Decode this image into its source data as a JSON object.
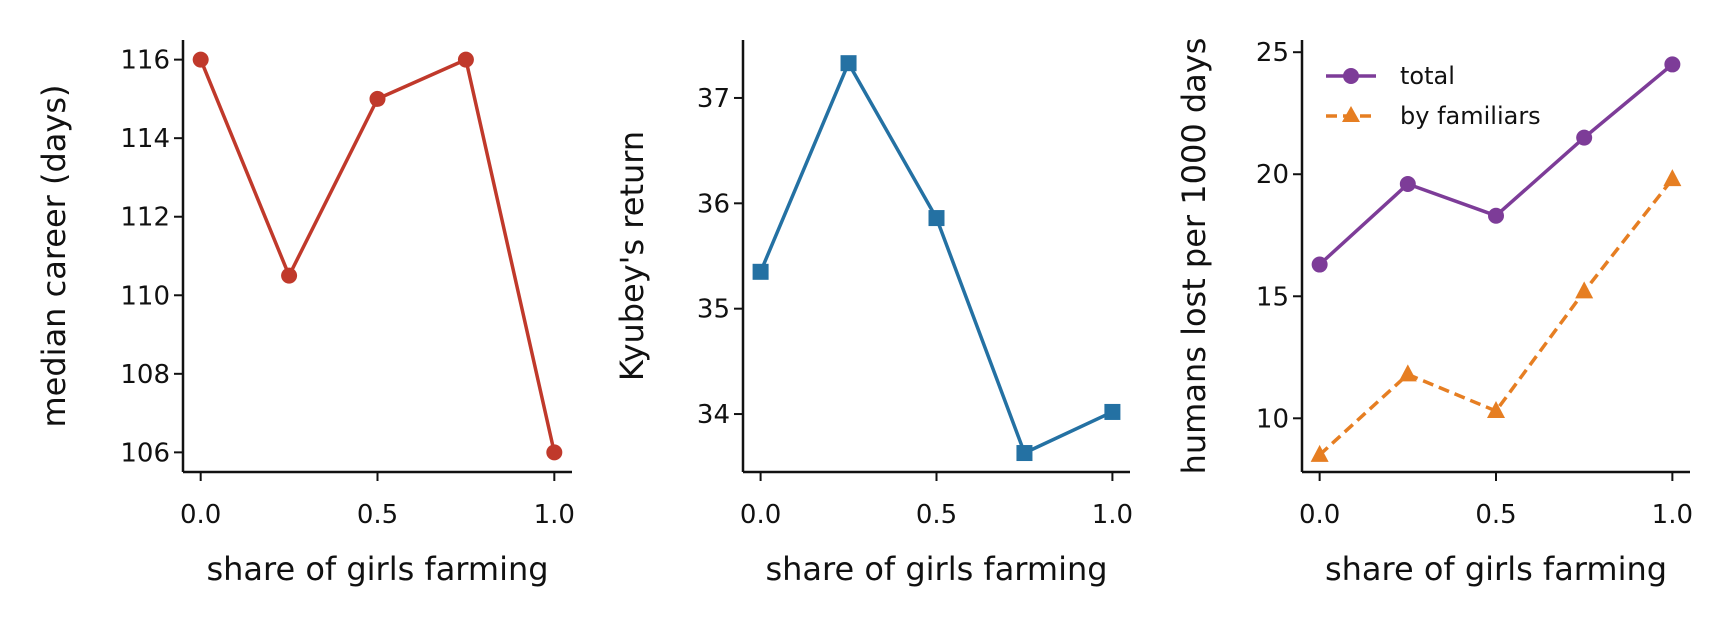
{
  "chart_data": [
    {
      "type": "line",
      "xlabel": "share of girls farming",
      "ylabel": "median career (days)",
      "x": [
        0.0,
        0.25,
        0.5,
        0.75,
        1.0
      ],
      "xlim": [
        -0.05,
        1.05
      ],
      "ylim": [
        105.5,
        116.5
      ],
      "xticks": [
        0.0,
        0.5,
        1.0
      ],
      "xtick_labels": [
        "0.0",
        "0.5",
        "1.0"
      ],
      "yticks": [
        106,
        108,
        110,
        112,
        114,
        116
      ],
      "ytick_labels": [
        "106",
        "108",
        "110",
        "112",
        "114",
        "116"
      ],
      "grid": false,
      "series": [
        {
          "values": [
            116,
            110.5,
            115,
            116,
            106
          ],
          "color": "#c0392b",
          "marker": "circle",
          "dash": "solid"
        }
      ]
    },
    {
      "type": "line",
      "xlabel": "share of girls farming",
      "ylabel": "Kyubey's return",
      "x": [
        0.0,
        0.25,
        0.5,
        0.75,
        1.0
      ],
      "xlim": [
        -0.05,
        1.05
      ],
      "ylim": [
        33.45,
        37.55
      ],
      "xticks": [
        0.0,
        0.5,
        1.0
      ],
      "xtick_labels": [
        "0.0",
        "0.5",
        "1.0"
      ],
      "yticks": [
        34,
        35,
        36,
        37
      ],
      "ytick_labels": [
        "34",
        "35",
        "36",
        "37"
      ],
      "grid": false,
      "series": [
        {
          "values": [
            35.35,
            37.33,
            35.86,
            33.63,
            34.02
          ],
          "color": "#2471a3",
          "marker": "square",
          "dash": "solid"
        }
      ]
    },
    {
      "type": "line",
      "xlabel": "share of girls farming",
      "ylabel": "humans lost per 1000 days",
      "x": [
        0.0,
        0.25,
        0.5,
        0.75,
        1.0
      ],
      "xlim": [
        -0.05,
        1.05
      ],
      "ylim": [
        7.8,
        25.5
      ],
      "xticks": [
        0.0,
        0.5,
        1.0
      ],
      "xtick_labels": [
        "0.0",
        "0.5",
        "1.0"
      ],
      "yticks": [
        10,
        15,
        20,
        25
      ],
      "ytick_labels": [
        "10",
        "15",
        "20",
        "25"
      ],
      "grid": false,
      "legend": "top-left",
      "series": [
        {
          "name": "total",
          "values": [
            16.3,
            19.6,
            18.3,
            21.5,
            24.5
          ],
          "color": "#7d3c98",
          "marker": "circle",
          "dash": "solid"
        },
        {
          "name": "by familiars",
          "values": [
            8.5,
            11.8,
            10.3,
            15.2,
            19.8
          ],
          "color": "#e67e22",
          "marker": "triangle",
          "dash": "dashed"
        }
      ]
    }
  ]
}
